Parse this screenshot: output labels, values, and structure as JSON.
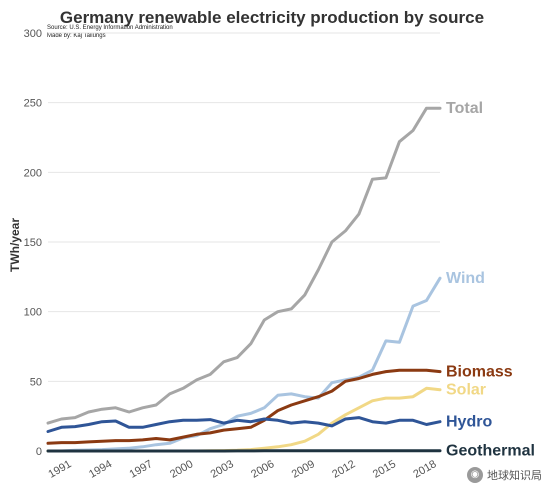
{
  "chart_data": {
    "type": "line",
    "title": "Germany renewable electricity production by source",
    "source": "Source: U.S. Energy Information Administration",
    "credit": "Made by: Kaj Tallungs",
    "xlabel": "",
    "ylabel": "TWh/year",
    "xlim": [
      1990,
      2019
    ],
    "ylim": [
      0,
      300
    ],
    "x_ticks": [
      "1991",
      "1994",
      "1997",
      "2000",
      "2003",
      "2006",
      "2009",
      "2012",
      "2015",
      "2018"
    ],
    "y_ticks": [
      "0",
      "50",
      "100",
      "150",
      "200",
      "250",
      "300"
    ],
    "grid": true,
    "legend": "labels at line ends (right)",
    "x": [
      1990,
      1991,
      1992,
      1993,
      1994,
      1995,
      1996,
      1997,
      1998,
      1999,
      2000,
      2001,
      2002,
      2003,
      2004,
      2005,
      2006,
      2007,
      2008,
      2009,
      2010,
      2011,
      2012,
      2013,
      2014,
      2015,
      2016,
      2017,
      2018,
      2019
    ],
    "series": [
      {
        "name": "Total",
        "color": "#a6a6a6",
        "values": [
          20,
          23,
          24,
          28,
          30,
          31,
          28,
          31,
          33,
          41,
          45,
          51,
          55,
          64,
          67,
          77,
          94,
          100,
          102,
          112,
          130,
          150,
          158,
          170,
          195,
          196,
          222,
          230,
          246,
          246
        ]
      },
      {
        "name": "Wind",
        "color": "#a9c4e0",
        "values": [
          0,
          0,
          0.5,
          0.7,
          1,
          1.5,
          2,
          3,
          4.5,
          5.5,
          9.5,
          11,
          16,
          19,
          25,
          27,
          31,
          40,
          41,
          39,
          38,
          49,
          51,
          53,
          58,
          79,
          78,
          104,
          108,
          124
        ]
      },
      {
        "name": "Biomass",
        "color": "#8b3a12",
        "values": [
          5.5,
          6,
          6,
          6.5,
          7,
          7.5,
          7.5,
          8,
          9,
          8,
          10,
          12,
          13,
          15,
          16,
          17,
          22,
          29,
          33,
          36,
          39,
          43,
          50,
          52,
          55,
          57,
          58,
          58,
          58,
          57
        ]
      },
      {
        "name": "Solar",
        "color": "#f1d886",
        "values": [
          0,
          0,
          0,
          0,
          0,
          0,
          0,
          0,
          0,
          0,
          0,
          0,
          0.2,
          0.3,
          0.5,
          1,
          2,
          3,
          4.5,
          7,
          12,
          20,
          26,
          31,
          36,
          38,
          38,
          39,
          45,
          44
        ]
      },
      {
        "name": "Hydro",
        "color": "#2f5597",
        "values": [
          14,
          17,
          17.5,
          19,
          21,
          21.5,
          17,
          17,
          19,
          21,
          22,
          22,
          22.5,
          20,
          22,
          21,
          23,
          22,
          20,
          21,
          20,
          18,
          23,
          24,
          21,
          20,
          22,
          22,
          19,
          21
        ]
      },
      {
        "name": "Geothermal",
        "color": "#1f3340",
        "values": [
          0,
          0,
          0,
          0,
          0,
          0,
          0,
          0,
          0,
          0,
          0,
          0,
          0,
          0,
          0.1,
          0.1,
          0.2,
          0.2,
          0.2,
          0.2,
          0.2,
          0.2,
          0.2,
          0.2,
          0.2,
          0.2,
          0.2,
          0.2,
          0.2,
          0.2
        ]
      }
    ]
  },
  "watermark": {
    "text": "地球知识局",
    "icon": "globe-badge-icon"
  }
}
